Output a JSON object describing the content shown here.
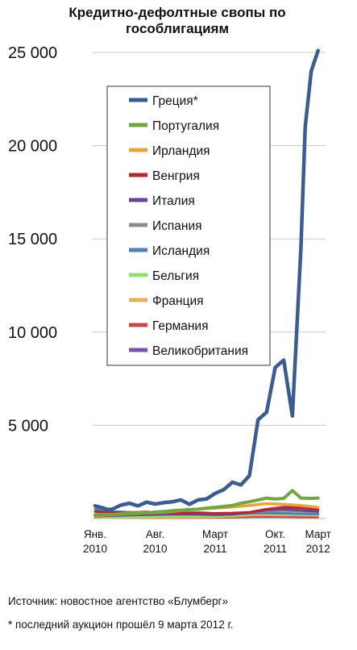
{
  "chart_data": {
    "type": "line",
    "title": "Кредитно-дефолтные свопы по гособлигациям",
    "ylim": [
      0,
      25000
    ],
    "yticks": [
      5000,
      10000,
      15000,
      20000,
      25000
    ],
    "ytick_labels": [
      "5 000",
      "10 000",
      "15 000",
      "20 000",
      "25 000"
    ],
    "xlim": [
      0,
      26.5
    ],
    "xticks": [
      {
        "pos": 0,
        "line1": "Янв.",
        "line2": "2010"
      },
      {
        "pos": 7,
        "line1": "Авг.",
        "line2": "2010"
      },
      {
        "pos": 14,
        "line1": "Март",
        "line2": "2011"
      },
      {
        "pos": 21,
        "line1": "Окт.",
        "line2": "2011"
      },
      {
        "pos": 26,
        "line1": "Март",
        "line2": "2012"
      }
    ],
    "grid": true,
    "legend_position": "upper-left",
    "series": [
      {
        "name": "Греция*",
        "color": "#3b5c93",
        "width": 4.5,
        "points": [
          [
            0,
            680
          ],
          [
            0.5,
            620
          ],
          [
            1,
            560
          ],
          [
            1.5,
            480
          ],
          [
            2,
            500
          ],
          [
            3,
            720
          ],
          [
            4,
            820
          ],
          [
            5,
            680
          ],
          [
            6,
            880
          ],
          [
            7,
            780
          ],
          [
            8,
            850
          ],
          [
            9,
            900
          ],
          [
            10,
            1000
          ],
          [
            11,
            760
          ],
          [
            12,
            1000
          ],
          [
            13,
            1050
          ],
          [
            14,
            1350
          ],
          [
            15,
            1550
          ],
          [
            16,
            1950
          ],
          [
            17,
            1800
          ],
          [
            18,
            2300
          ],
          [
            19,
            5300
          ],
          [
            20,
            5700
          ],
          [
            21,
            8100
          ],
          [
            22,
            8500
          ],
          [
            23,
            5500
          ],
          [
            24,
            14500
          ],
          [
            24.5,
            21000
          ],
          [
            25.2,
            24000
          ],
          [
            26,
            25100
          ]
        ]
      },
      {
        "name": "Португалия",
        "color": "#70a63f",
        "width": 4,
        "points": [
          [
            0,
            200
          ],
          [
            1,
            220
          ],
          [
            2,
            210
          ],
          [
            3,
            260
          ],
          [
            4,
            300
          ],
          [
            5,
            320
          ],
          [
            6,
            300
          ],
          [
            7,
            350
          ],
          [
            8,
            380
          ],
          [
            9,
            420
          ],
          [
            10,
            450
          ],
          [
            11,
            480
          ],
          [
            12,
            500
          ],
          [
            13,
            560
          ],
          [
            14,
            600
          ],
          [
            15,
            650
          ],
          [
            16,
            700
          ],
          [
            17,
            820
          ],
          [
            18,
            900
          ],
          [
            19,
            1000
          ],
          [
            20,
            1100
          ],
          [
            21,
            1050
          ],
          [
            22,
            1080
          ],
          [
            23,
            1500
          ],
          [
            24,
            1100
          ],
          [
            25,
            1080
          ],
          [
            26,
            1100
          ]
        ]
      },
      {
        "name": "Ирландия",
        "color": "#e8a33d",
        "width": 3.5,
        "points": [
          [
            0,
            170
          ],
          [
            2,
            200
          ],
          [
            4,
            260
          ],
          [
            6,
            300
          ],
          [
            8,
            340
          ],
          [
            10,
            420
          ],
          [
            12,
            500
          ],
          [
            14,
            560
          ],
          [
            16,
            620
          ],
          [
            18,
            700
          ],
          [
            20,
            800
          ],
          [
            22,
            760
          ],
          [
            24,
            700
          ],
          [
            26,
            600
          ]
        ]
      },
      {
        "name": "Венгрия",
        "color": "#b7282e",
        "width": 3,
        "points": [
          [
            0,
            370
          ],
          [
            2,
            320
          ],
          [
            4,
            330
          ],
          [
            6,
            360
          ],
          [
            8,
            320
          ],
          [
            10,
            300
          ],
          [
            12,
            320
          ],
          [
            14,
            280
          ],
          [
            16,
            300
          ],
          [
            18,
            340
          ],
          [
            20,
            500
          ],
          [
            22,
            620
          ],
          [
            24,
            580
          ],
          [
            26,
            480
          ]
        ]
      },
      {
        "name": "Италия",
        "color": "#6a4595",
        "width": 3,
        "points": [
          [
            0,
            130
          ],
          [
            2,
            150
          ],
          [
            4,
            180
          ],
          [
            6,
            200
          ],
          [
            8,
            220
          ],
          [
            10,
            230
          ],
          [
            12,
            220
          ],
          [
            14,
            200
          ],
          [
            16,
            220
          ],
          [
            18,
            320
          ],
          [
            20,
            460
          ],
          [
            22,
            500
          ],
          [
            24,
            440
          ],
          [
            26,
            380
          ]
        ]
      },
      {
        "name": "Испания",
        "color": "#8c8c8c",
        "width": 3,
        "points": [
          [
            0,
            120
          ],
          [
            2,
            150
          ],
          [
            4,
            180
          ],
          [
            6,
            210
          ],
          [
            8,
            230
          ],
          [
            10,
            260
          ],
          [
            12,
            250
          ],
          [
            14,
            230
          ],
          [
            16,
            260
          ],
          [
            18,
            330
          ],
          [
            20,
            400
          ],
          [
            22,
            420
          ],
          [
            24,
            400
          ],
          [
            26,
            380
          ]
        ]
      },
      {
        "name": "Исландия",
        "color": "#4f7fb5",
        "width": 3,
        "points": [
          [
            0,
            500
          ],
          [
            1,
            420
          ],
          [
            2,
            380
          ],
          [
            4,
            340
          ],
          [
            6,
            300
          ],
          [
            8,
            280
          ],
          [
            10,
            260
          ],
          [
            12,
            250
          ],
          [
            14,
            230
          ],
          [
            16,
            240
          ],
          [
            18,
            280
          ],
          [
            20,
            300
          ],
          [
            22,
            280
          ],
          [
            24,
            260
          ],
          [
            26,
            250
          ]
        ]
      },
      {
        "name": "Бельгия",
        "color": "#8fe06a",
        "width": 3,
        "points": [
          [
            0,
            60
          ],
          [
            4,
            70
          ],
          [
            8,
            100
          ],
          [
            12,
            120
          ],
          [
            14,
            140
          ],
          [
            16,
            160
          ],
          [
            18,
            250
          ],
          [
            20,
            300
          ],
          [
            22,
            260
          ],
          [
            24,
            220
          ],
          [
            26,
            200
          ]
        ]
      },
      {
        "name": "Франция",
        "color": "#e6b05c",
        "width": 3,
        "points": [
          [
            0,
            40
          ],
          [
            4,
            50
          ],
          [
            8,
            70
          ],
          [
            12,
            80
          ],
          [
            14,
            90
          ],
          [
            16,
            120
          ],
          [
            18,
            180
          ],
          [
            20,
            200
          ],
          [
            22,
            190
          ],
          [
            24,
            180
          ],
          [
            26,
            170
          ]
        ]
      },
      {
        "name": "Германия",
        "color": "#c44b43",
        "width": 2.5,
        "points": [
          [
            0,
            30
          ],
          [
            4,
            35
          ],
          [
            8,
            40
          ],
          [
            12,
            45
          ],
          [
            16,
            60
          ],
          [
            18,
            90
          ],
          [
            20,
            100
          ],
          [
            22,
            90
          ],
          [
            24,
            70
          ],
          [
            26,
            60
          ]
        ]
      },
      {
        "name": "Великобритания",
        "color": "#7c52a8",
        "width": 3,
        "points": [
          [
            0,
            80
          ],
          [
            4,
            75
          ],
          [
            8,
            65
          ],
          [
            12,
            60
          ],
          [
            14,
            65
          ],
          [
            16,
            80
          ],
          [
            18,
            95
          ],
          [
            20,
            100
          ],
          [
            22,
            95
          ],
          [
            24,
            90
          ]
        ]
      }
    ]
  },
  "footer": {
    "source": "Источник: новостное агентство «Блумберг»",
    "note": "* последний аукцион прошёл 9 марта 2012 г."
  }
}
